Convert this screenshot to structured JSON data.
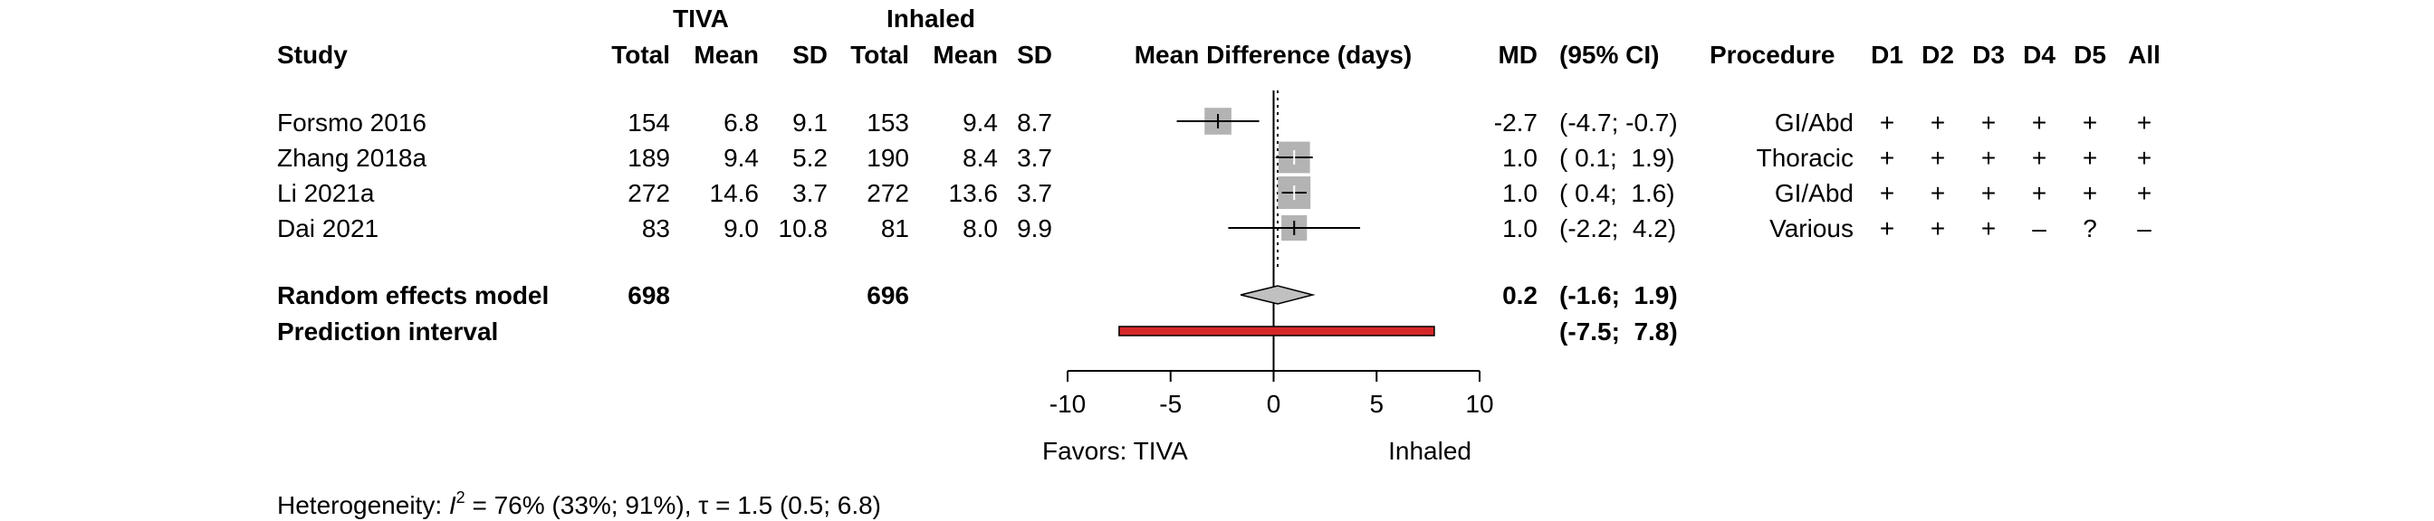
{
  "header": {
    "group1": "TIVA",
    "group2": "Inhaled",
    "study": "Study",
    "total": "Total",
    "mean": "Mean",
    "sd": "SD",
    "plot_title": "Mean Difference (days)",
    "md": "MD",
    "ci": "(95% CI)",
    "procedure": "Procedure",
    "d1": "D1",
    "d2": "D2",
    "d3": "D3",
    "d4": "D4",
    "d5": "D5",
    "all": "All"
  },
  "studies": [
    {
      "name": "Forsmo 2016",
      "t_total": "154",
      "t_mean": "6.8",
      "t_sd": "9.1",
      "i_total": "153",
      "i_mean": "9.4",
      "i_sd": "8.7",
      "md_text": "-2.7",
      "ci_text": "(-4.7; -0.7)",
      "procedure": "GI/Abd",
      "d1": "+",
      "d2": "+",
      "d3": "+",
      "d4": "+",
      "d5": "+",
      "all": "+"
    },
    {
      "name": "Zhang 2018a",
      "t_total": "189",
      "t_mean": "9.4",
      "t_sd": "5.2",
      "i_total": "190",
      "i_mean": "8.4",
      "i_sd": "3.7",
      "md_text": "1.0",
      "ci_text": "( 0.1;  1.9)",
      "procedure": "Thoracic",
      "d1": "+",
      "d2": "+",
      "d3": "+",
      "d4": "+",
      "d5": "+",
      "all": "+"
    },
    {
      "name": "Li 2021a",
      "t_total": "272",
      "t_mean": "14.6",
      "t_sd": "3.7",
      "i_total": "272",
      "i_mean": "13.6",
      "i_sd": "3.7",
      "md_text": "1.0",
      "ci_text": "( 0.4;  1.6)",
      "procedure": "GI/Abd",
      "d1": "+",
      "d2": "+",
      "d3": "+",
      "d4": "+",
      "d5": "+",
      "all": "+"
    },
    {
      "name": "Dai 2021",
      "t_total": "83",
      "t_mean": "9.0",
      "t_sd": "10.8",
      "i_total": "81",
      "i_mean": "8.0",
      "i_sd": "9.9",
      "md_text": "1.0",
      "ci_text": "(-2.2;  4.2)",
      "procedure": "Various",
      "d1": "+",
      "d2": "+",
      "d3": "+",
      "d4": "–",
      "d5": "?",
      "all": "–"
    }
  ],
  "overall": {
    "label": "Random effects model",
    "t_total": "698",
    "i_total": "696",
    "md_text": "0.2",
    "ci_text": "(-1.6;  1.9)"
  },
  "prediction": {
    "label": "Prediction interval",
    "ci_text": "(-7.5;  7.8)"
  },
  "footer": {
    "favors_left": "Favors: TIVA",
    "favors_right": "Inhaled",
    "heterogeneity_prefix": "Heterogeneity: ",
    "i2_symbol": "I",
    "i2_sup": "2",
    "heterogeneity_rest": " = 76% (33%; 91%), τ = 1.5 (0.5; 6.8)"
  },
  "chart_data": {
    "type": "forest",
    "xlabel": "Mean Difference (days)",
    "xlim": [
      -10,
      10
    ],
    "xticks": [
      -10,
      -5,
      0,
      5,
      10
    ],
    "null_value": 0,
    "studies": [
      {
        "name": "Forsmo 2016",
        "md": -2.7,
        "lower": -4.7,
        "upper": -0.7,
        "weight": 0.21
      },
      {
        "name": "Zhang 2018a",
        "md": 1.0,
        "lower": 0.1,
        "upper": 1.9,
        "weight": 0.29
      },
      {
        "name": "Li 2021a",
        "md": 1.0,
        "lower": 0.4,
        "upper": 1.6,
        "weight": 0.31
      },
      {
        "name": "Dai 2021",
        "md": 1.0,
        "lower": -2.2,
        "upper": 4.2,
        "weight": 0.19
      }
    ],
    "overall": {
      "md": 0.2,
      "lower": -1.6,
      "upper": 1.9
    },
    "prediction": {
      "lower": -7.5,
      "upper": 7.8
    },
    "colors": {
      "square": "#b3b3b3",
      "diamond": "#c0c0c0",
      "prediction": "#d62728",
      "line": "#000000"
    }
  }
}
